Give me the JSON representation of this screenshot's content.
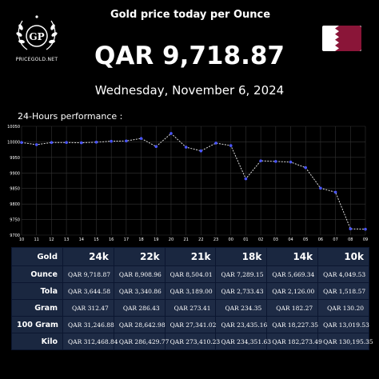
{
  "logo": {
    "monogram": "GP",
    "site": "PRICEGOLD.NET"
  },
  "header": {
    "title": "Gold price today per Ounce",
    "price": "QAR 9,718.87",
    "date": "Wednesday, November 6, 2024"
  },
  "flag": {
    "white": "#ffffff",
    "maroon": "#8a1538"
  },
  "performance_label": "24-Hours performance :",
  "chart_data": {
    "type": "line",
    "categories": [
      "10",
      "11",
      "12",
      "13",
      "14",
      "15",
      "16",
      "17",
      "18",
      "19",
      "20",
      "21",
      "22",
      "23",
      "00",
      "01",
      "02",
      "03",
      "04",
      "05",
      "06",
      "07",
      "08",
      "09"
    ],
    "values": [
      9998,
      9991,
      9998,
      9998,
      9997,
      9999,
      10002,
      10003,
      10011,
      9985,
      10027,
      9983,
      9971,
      9996,
      9988,
      9881,
      9939,
      9937,
      9935,
      9917,
      9851,
      9838,
      9720,
      9719
    ],
    "ylim": [
      9700,
      10050
    ],
    "yticks": [
      "9700",
      "9750",
      "9800",
      "9850",
      "9900",
      "9950",
      "10000",
      "10050"
    ],
    "grid": true,
    "line_color": "#dddddd",
    "point_color": "#4a55ff"
  },
  "table": {
    "corner": "Gold",
    "columns": [
      "24k",
      "22k",
      "21k",
      "18k",
      "14k",
      "10k"
    ],
    "rows": [
      {
        "label": "Ounce",
        "values": [
          "QAR 9,718.87",
          "QAR 8,908.96",
          "QAR 8,504.01",
          "QAR 7,289.15",
          "QAR 5,669.34",
          "QAR 4,049.53"
        ]
      },
      {
        "label": "Tola",
        "values": [
          "QAR 3,644.58",
          "QAR 3,340.86",
          "QAR 3,189.00",
          "QAR 2,733.43",
          "QAR 2,126.00",
          "QAR 1,518.57"
        ]
      },
      {
        "label": "Gram",
        "values": [
          "QAR 312.47",
          "QAR 286.43",
          "QAR 273.41",
          "QAR 234.35",
          "QAR 182.27",
          "QAR 130.20"
        ]
      },
      {
        "label": "100 Gram",
        "values": [
          "QAR 31,246.88",
          "QAR 28,642.98",
          "QAR 27,341.02",
          "QAR 23,435.16",
          "QAR 18,227.35",
          "QAR 13,019.53"
        ]
      },
      {
        "label": "Kilo",
        "values": [
          "QAR 312,468.84",
          "QAR 286,429.77",
          "QAR 273,410.23",
          "QAR 234,351.63",
          "QAR 182,273.49",
          "QAR 130,195.35"
        ]
      }
    ]
  }
}
